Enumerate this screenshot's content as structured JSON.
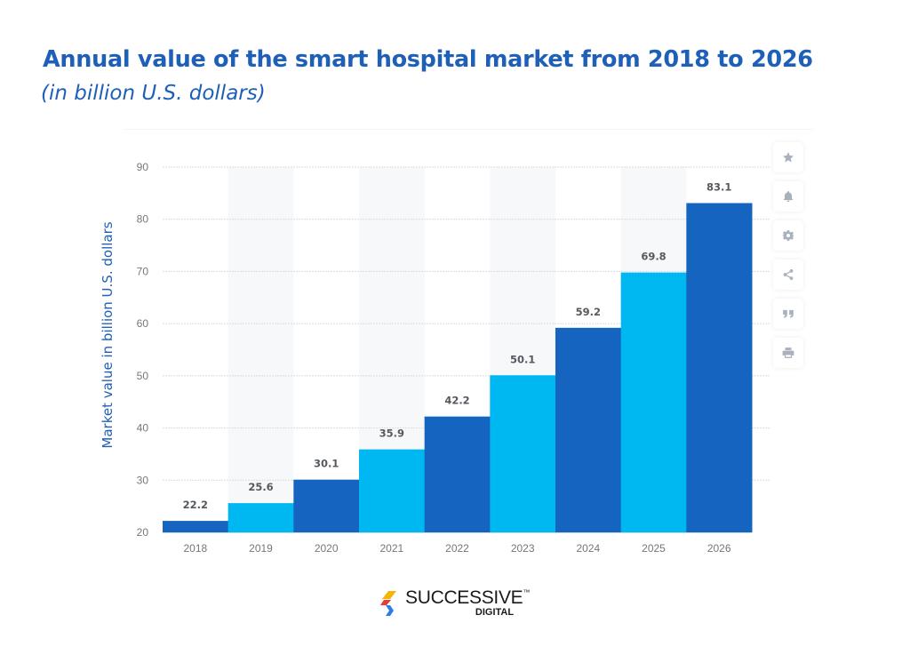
{
  "page": {
    "title": "Annual value of the smart hospital market from 2018 to 2026",
    "subtitle": "(in billion U.S. dollars)"
  },
  "chart_data": {
    "type": "bar",
    "title": "Annual value of the smart hospital market from 2018 to 2026",
    "subtitle": "(in billion U.S. dollars)",
    "xlabel": "",
    "ylabel": "Market value in billion U.S. dollars",
    "categories": [
      "2018",
      "2019",
      "2020",
      "2021",
      "2022",
      "2023",
      "2024",
      "2025",
      "2026"
    ],
    "values": [
      22.2,
      25.6,
      30.1,
      35.9,
      42.2,
      50.1,
      59.2,
      69.8,
      83.1
    ],
    "value_labels": [
      "22.2",
      "25.6",
      "30.1",
      "35.9",
      "42.2",
      "50.1",
      "59.2",
      "69.8",
      "83.1"
    ],
    "ylim": [
      20,
      90
    ],
    "yticks": [
      20,
      30,
      40,
      50,
      60,
      70,
      80,
      90
    ],
    "ytick_labels": [
      "20",
      "30",
      "40",
      "50",
      "60",
      "70",
      "80",
      "90"
    ],
    "grid": true,
    "legend": "none",
    "bar_colors": [
      "#1565c0",
      "#00b8f1"
    ],
    "band_color": "#f7f8fa"
  },
  "toolbar": {
    "items": [
      {
        "name": "favorite",
        "icon": "star-icon"
      },
      {
        "name": "notification",
        "icon": "bell-icon"
      },
      {
        "name": "settings",
        "icon": "gear-icon"
      },
      {
        "name": "share",
        "icon": "share-icon"
      },
      {
        "name": "cite",
        "icon": "quote-icon"
      },
      {
        "name": "print",
        "icon": "printer-icon"
      }
    ],
    "icon_color": "#a9b1bd"
  },
  "brand": {
    "name": "SUCCESSIVE",
    "trademark": "™",
    "sub": "DIGITAL",
    "colors": [
      "#f7b500",
      "#ee3b2f",
      "#2b7de9"
    ]
  }
}
